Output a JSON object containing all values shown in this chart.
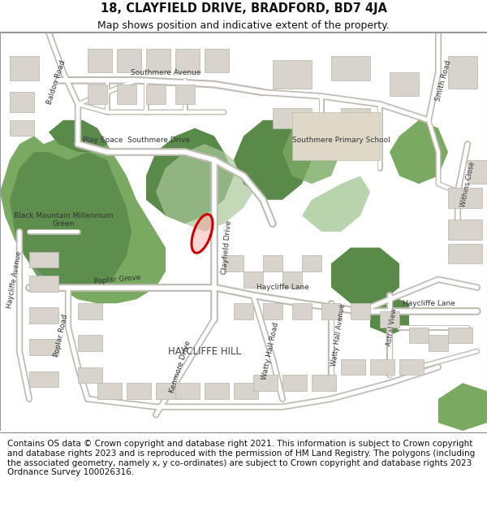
{
  "title_line1": "18, CLAYFIELD DRIVE, BRADFORD, BD7 4JA",
  "title_line2": "Map shows position and indicative extent of the property.",
  "footer_text": "Contains OS data © Crown copyright and database right 2021. This information is subject to Crown copyright and database rights 2023 and is reproduced with the permission of HM Land Registry. The polygons (including the associated geometry, namely x, y co-ordinates) are subject to Crown copyright and database rights 2023 Ordnance Survey 100026316.",
  "title_fontsize": 10.5,
  "subtitle_fontsize": 9,
  "footer_fontsize": 7.5,
  "fig_width": 6.0,
  "fig_height": 6.25,
  "dpi": 100,
  "map_bg_color": "#f5f3ef",
  "header_bg": "#ffffff",
  "footer_bg": "#ffffff",
  "green_dark": "#5a8a4a",
  "green_mid": "#7aaa62",
  "green_light": "#a8c898",
  "building_color": "#d8d4cc",
  "road_white": "#ffffff",
  "road_outline": "#c8c4bc"
}
